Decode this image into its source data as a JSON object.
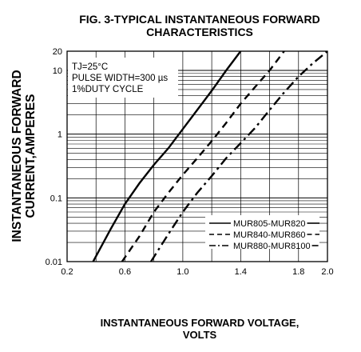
{
  "chart_data": {
    "type": "line",
    "title_line1": "FIG. 3-TYPICAL INSTANTANEOUS FORWARD",
    "title_line2": "CHARACTERISTICS",
    "xlabel_line1": "INSTANTANEOUS FORWARD VOLTAGE,",
    "xlabel_line2": "VOLTS",
    "ylabel_line1": "INSTANTANEOUS FORWARD",
    "ylabel_line2": "CURRENT,AMPERES",
    "xlim": [
      0.2,
      2.0
    ],
    "ylim": [
      0.01,
      20
    ],
    "y_scale": "log",
    "x_ticks": [
      {
        "value": 0.2,
        "label": "0.2"
      },
      {
        "value": 0.6,
        "label": "0.6"
      },
      {
        "value": 1.0,
        "label": "1.0"
      },
      {
        "value": 1.4,
        "label": "1.4"
      },
      {
        "value": 1.8,
        "label": "1.8"
      },
      {
        "value": 2.0,
        "label": "2.0"
      }
    ],
    "y_ticks": [
      {
        "value": 0.01,
        "label": "0.01"
      },
      {
        "value": 0.1,
        "label": "0.1"
      },
      {
        "value": 1,
        "label": "1"
      },
      {
        "value": 10,
        "label": "10"
      },
      {
        "value": 20,
        "label": "20"
      }
    ],
    "grid": true,
    "annotation_lines": [
      "TJ=25°C",
      "PULSE WIDTH=300 µs",
      "1%DUTY CYCLE"
    ],
    "legend_position": "bottom-right",
    "series": [
      {
        "name": "MUR805-MUR820",
        "style": "solid",
        "x": [
          0.38,
          0.5,
          0.6,
          0.7,
          0.8,
          0.9,
          1.0,
          1.1,
          1.2,
          1.3,
          1.4
        ],
        "y": [
          0.01,
          0.032,
          0.08,
          0.17,
          0.33,
          0.6,
          1.2,
          2.4,
          4.8,
          10,
          20
        ]
      },
      {
        "name": "MUR840-MUR860",
        "style": "dashed",
        "x": [
          0.58,
          0.7,
          0.8,
          0.9,
          1.0,
          1.1,
          1.2,
          1.3,
          1.4,
          1.5,
          1.6,
          1.7
        ],
        "y": [
          0.01,
          0.025,
          0.06,
          0.12,
          0.23,
          0.42,
          0.78,
          1.5,
          3,
          5.5,
          10,
          20
        ]
      },
      {
        "name": "MUR880-MUR8100",
        "style": "dashdot",
        "x": [
          0.78,
          0.9,
          1.0,
          1.1,
          1.2,
          1.3,
          1.4,
          1.5,
          1.6,
          1.7,
          1.8,
          1.9,
          2.0
        ],
        "y": [
          0.01,
          0.027,
          0.06,
          0.12,
          0.22,
          0.42,
          0.72,
          1.25,
          2.4,
          4.5,
          8,
          13,
          20
        ]
      }
    ]
  }
}
